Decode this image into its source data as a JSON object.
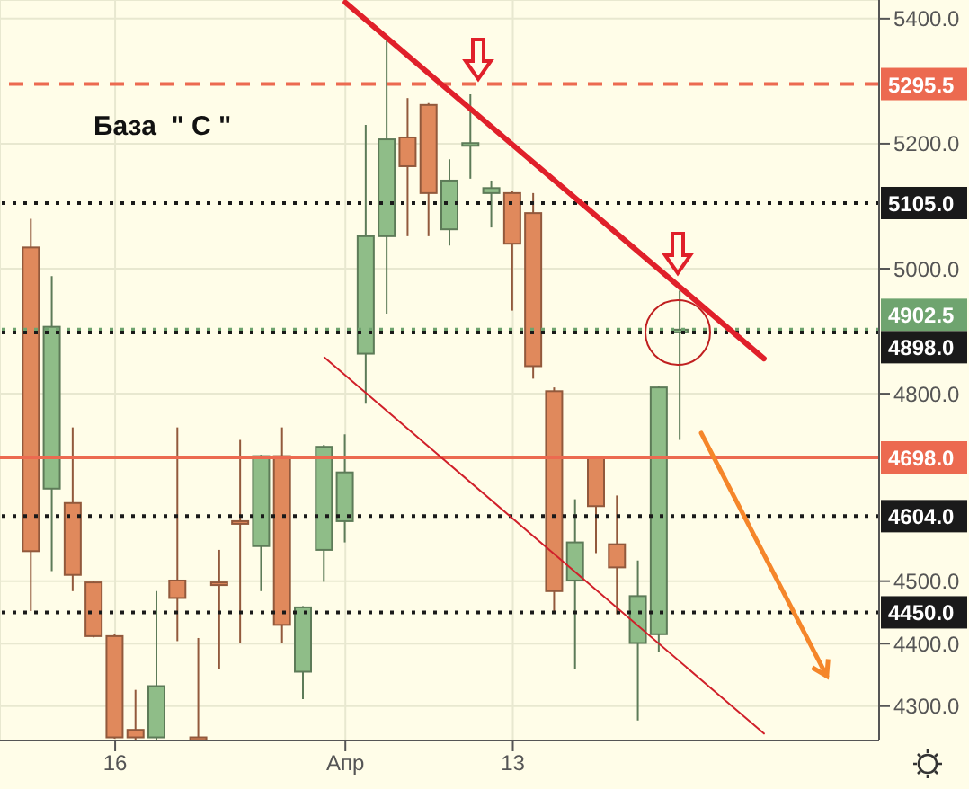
{
  "chart_data": {
    "type": "candlestick",
    "annotations": [
      "База  \" С \""
    ],
    "categories": [
      null,
      null,
      null,
      null,
      null,
      "16",
      null,
      null,
      null,
      null,
      null,
      null,
      null,
      null,
      null,
      null,
      "Апр",
      null,
      null,
      null,
      null,
      null,
      null,
      null,
      "13",
      null,
      null,
      null,
      null,
      null,
      null,
      null,
      null,
      null,
      null,
      null,
      null,
      null,
      null,
      null,
      null,
      null
    ],
    "ohlc": [
      null,
      [
        5034,
        5080,
        4452,
        4548
      ],
      [
        4648,
        4988,
        4516,
        4907
      ],
      [
        4625,
        4746,
        4484,
        4510
      ],
      [
        4498,
        4500,
        4410,
        4412
      ],
      [
        4412,
        4415,
        4248,
        4250
      ],
      [
        4262,
        4326,
        4246,
        4250
      ],
      [
        4250,
        4484,
        4246,
        4332
      ],
      [
        4501,
        4746,
        4404,
        4473
      ],
      [
        4250,
        4409,
        4246,
        4248
      ],
      [
        4498,
        4550,
        4360,
        4494
      ],
      [
        4596,
        4726,
        4401,
        4592
      ],
      [
        4556,
        4702,
        4484,
        4700
      ],
      [
        4700,
        4746,
        4401,
        4430
      ],
      [
        4355,
        4460,
        4311,
        4458
      ],
      [
        4550,
        4718,
        4499,
        4715
      ],
      [
        4596,
        4735,
        4562,
        4674
      ],
      [
        4864,
        5230,
        4784,
        5052
      ],
      [
        5052,
        5368,
        4928,
        5207
      ],
      [
        5210,
        5273,
        5052,
        5164
      ],
      [
        5262,
        5265,
        5052,
        5121
      ],
      [
        5063,
        5175,
        5037,
        5141
      ],
      [
        5197,
        5279,
        5144,
        5201
      ],
      [
        5121,
        5141,
        5066,
        5129
      ],
      [
        5121,
        5125,
        4933,
        5040
      ],
      [
        5089,
        5121,
        4824,
        4844
      ],
      [
        4804,
        4810,
        4452,
        4484
      ],
      [
        4501,
        4631,
        4360,
        4562
      ],
      [
        4697,
        4700,
        4545,
        4620
      ],
      [
        4559,
        4637,
        4447,
        4522
      ],
      [
        4401,
        4533,
        4277,
        4476
      ],
      [
        4415,
        4812,
        4386,
        4810
      ],
      [
        4898,
        4965,
        4726,
        4902.5
      ],
      null,
      null,
      null,
      null,
      null,
      null,
      null,
      null,
      null
    ],
    "colors": [
      null,
      "#e0895c",
      "#8fbd88",
      "#e0895c",
      "#e0895c",
      "#e0895c",
      "#e0895c",
      "#8fbd88",
      "#e0895c",
      "#e0895c",
      "#e0895c",
      "#e0895c",
      "#8fbd88",
      "#e0895c",
      "#8fbd88",
      "#8fbd88",
      "#8fbd88",
      "#8fbd88",
      "#8fbd88",
      "#e0895c",
      "#e0895c",
      "#8fbd88",
      "#8fbd88",
      "#8fbd88",
      "#e0895c",
      "#e0895c",
      "#e0895c",
      "#8fbd88",
      "#e0895c",
      "#e0895c",
      "#8fbd88",
      "#8fbd88",
      "#8fbd88",
      null,
      null,
      null,
      null,
      null,
      null,
      null,
      null,
      null
    ],
    "series": [
      {
        "type": "line",
        "color": "#e0202a",
        "values": [
          null,
          null,
          null,
          null,
          null,
          null,
          null,
          null,
          null,
          null,
          null,
          null,
          null,
          null,
          null,
          null,
          5426,
          null,
          null,
          null,
          null,
          null,
          null,
          null,
          null,
          null,
          null,
          null,
          null,
          null,
          null,
          null,
          null,
          null,
          null,
          null,
          4856,
          null,
          null,
          null,
          null,
          null
        ]
      },
      {
        "type": "line",
        "color": "#d0202a",
        "values": [
          null,
          null,
          null,
          null,
          null,
          null,
          null,
          null,
          null,
          null,
          null,
          null,
          null,
          null,
          null,
          4858,
          null,
          null,
          null,
          null,
          null,
          null,
          null,
          null,
          null,
          null,
          null,
          null,
          null,
          null,
          null,
          null,
          null,
          null,
          null,
          null,
          4256,
          null,
          null,
          null,
          null,
          null
        ]
      },
      {
        "type": "line",
        "color": "#f5862a",
        "values": [
          null,
          null,
          null,
          null,
          null,
          null,
          null,
          null,
          null,
          null,
          null,
          null,
          null,
          null,
          null,
          null,
          null,
          null,
          null,
          null,
          null,
          null,
          null,
          null,
          null,
          null,
          null,
          null,
          null,
          null,
          null,
          null,
          null,
          4737,
          null,
          null,
          null,
          null,
          null,
          4348,
          null,
          null
        ]
      }
    ],
    "ylim": [
      4245,
      5430
    ],
    "yticks": [
      {
        "value": 4300,
        "label": "4300.0"
      },
      {
        "value": 4400,
        "label": "4400.0"
      },
      {
        "value": 4500,
        "label": "4500.0"
      },
      {
        "value": 4800,
        "label": "4800.0"
      },
      {
        "value": 5000,
        "label": "5000.0"
      },
      {
        "value": 5200,
        "label": "5200.0"
      },
      {
        "value": 5400,
        "label": "5400.0"
      }
    ],
    "grid": true,
    "ref_lines": [
      {
        "axis": "y",
        "value": 5295.5,
        "label": "5295.5",
        "color": "#ec6a50",
        "line_style": "dashed"
      },
      {
        "axis": "y",
        "value": 5105,
        "label": "5105.0",
        "color": "#1a1a1a",
        "line_style": "dotted"
      },
      {
        "axis": "y",
        "value": 4902.5,
        "label": "4902.5",
        "color": "#6fa46f",
        "line_style": "dotted"
      },
      {
        "axis": "y",
        "value": 4898,
        "label": "4898.0",
        "color": "#1a1a1a",
        "line_style": "dotted"
      },
      {
        "axis": "y",
        "value": 4698,
        "label": "4698.0",
        "color": "#ec6a50",
        "line_style": "solid"
      },
      {
        "axis": "y",
        "value": 4604,
        "label": "4604.0",
        "color": "#1a1a1a",
        "line_style": "dotted"
      },
      {
        "axis": "y",
        "value": 4450,
        "label": "4450.0",
        "color": "#1a1a1a",
        "line_style": "dotted"
      }
    ]
  }
}
